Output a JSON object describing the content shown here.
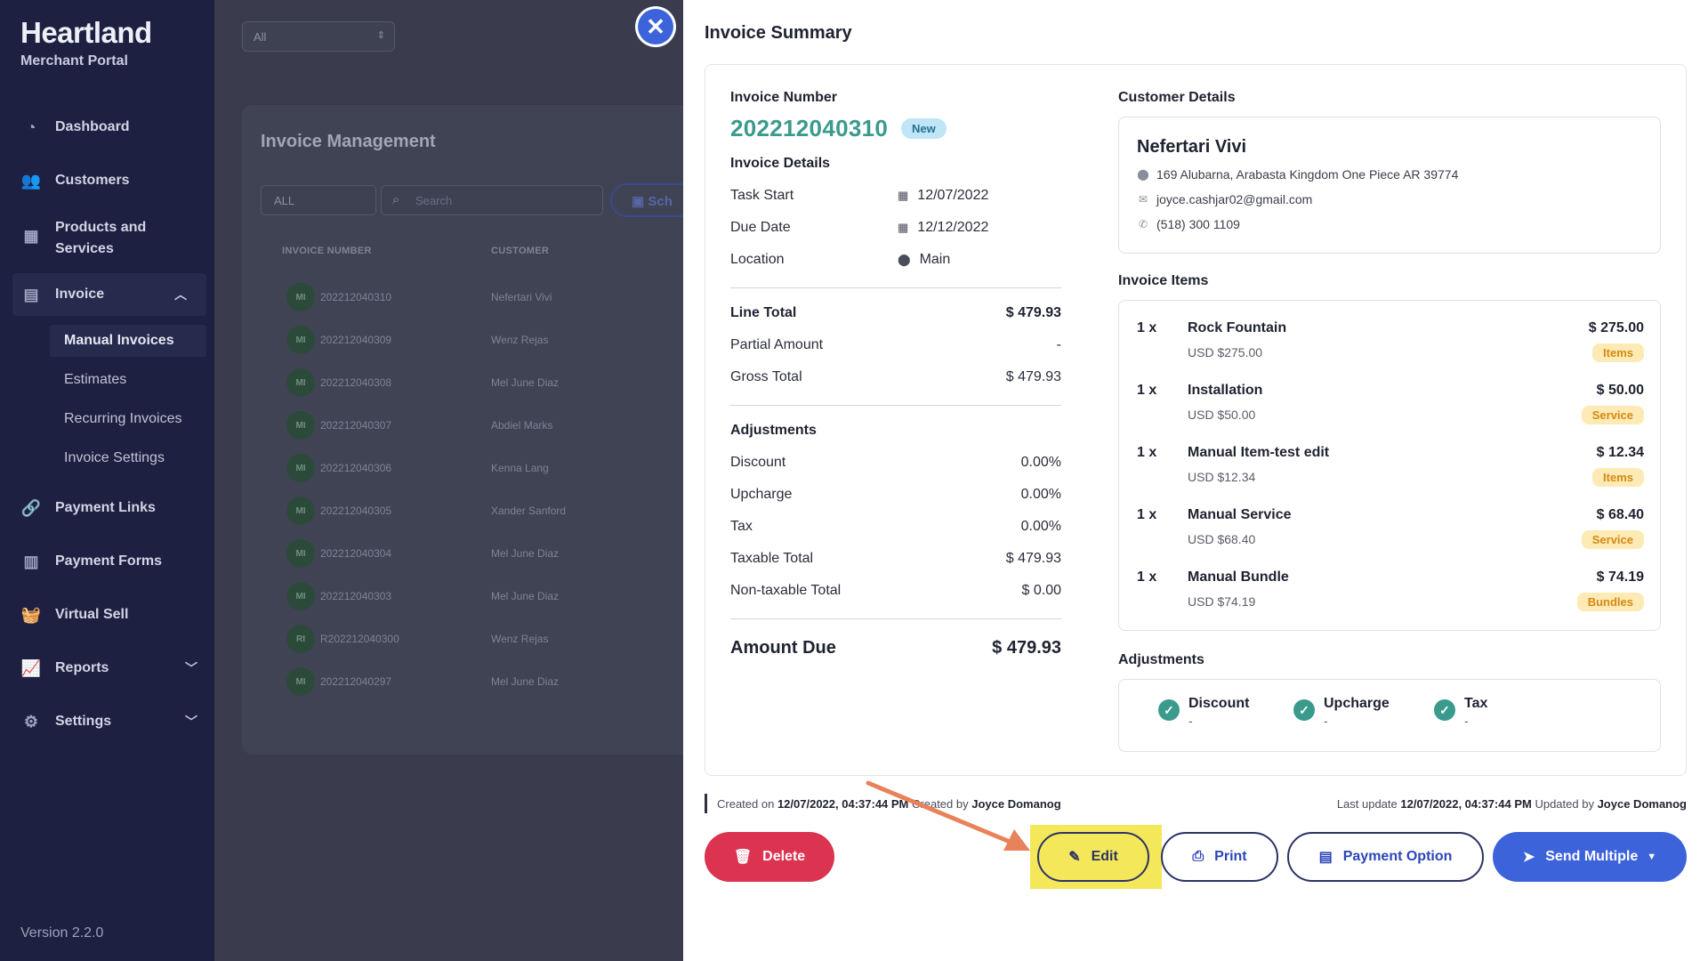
{
  "sidebar": {
    "brand": "Heartland",
    "subtitle": "Merchant Portal",
    "nav": [
      {
        "label": "Dashboard",
        "icon": "pie-chart-icon"
      },
      {
        "label": "Customers",
        "icon": "users-icon"
      },
      {
        "label": "Products and",
        "label2": "Services",
        "icon": "boxes-icon"
      },
      {
        "label": "Invoice",
        "icon": "document-icon"
      },
      {
        "label": "Payment Links",
        "icon": "link-icon"
      },
      {
        "label": "Payment Forms",
        "icon": "form-icon"
      },
      {
        "label": "Virtual Sell",
        "icon": "basket-icon"
      },
      {
        "label": "Reports",
        "icon": "line-chart-icon"
      },
      {
        "label": "Settings",
        "icon": "gears-icon"
      }
    ],
    "invoice_sub": [
      "Manual Invoices",
      "Estimates",
      "Recurring Invoices",
      "Invoice Settings"
    ],
    "version": "Version 2.2.0"
  },
  "background": {
    "filter_value": "All",
    "title": "Invoice Management",
    "all_value": "ALL",
    "search_placeholder": "Search",
    "schedule_label": "Sch",
    "col_invoice": "INVOICE NUMBER",
    "col_customer": "CUSTOMER",
    "rows": [
      {
        "initials": "MI",
        "number": "202212040310",
        "customer": "Nefertari Vivi"
      },
      {
        "initials": "MI",
        "number": "202212040309",
        "customer": "Wenz Rejas"
      },
      {
        "initials": "MI",
        "number": "202212040308",
        "customer": "Mel June Diaz"
      },
      {
        "initials": "MI",
        "number": "202212040307",
        "customer": "Abdiel Marks"
      },
      {
        "initials": "MI",
        "number": "202212040306",
        "customer": "Kenna Lang"
      },
      {
        "initials": "MI",
        "number": "202212040305",
        "customer": "Xander Sanford"
      },
      {
        "initials": "MI",
        "number": "202212040304",
        "customer": "Mel June Diaz"
      },
      {
        "initials": "MI",
        "number": "202212040303",
        "customer": "Mel June Diaz"
      },
      {
        "initials": "RI",
        "number": "R202212040300",
        "customer": "Wenz Rejas"
      },
      {
        "initials": "MI",
        "number": "202212040297",
        "customer": "Mel June Diaz"
      }
    ]
  },
  "drawer": {
    "title": "Invoice Summary",
    "invoice_number_label": "Invoice Number",
    "invoice_number": "202212040310",
    "status": "New",
    "details_label": "Invoice Details",
    "task_start_label": "Task Start",
    "task_start": "12/07/2022",
    "due_date_label": "Due Date",
    "due_date": "12/12/2022",
    "location_label": "Location",
    "location": "Main",
    "line_total_label": "Line Total",
    "line_total": "$ 479.93",
    "partial_label": "Partial Amount",
    "partial": "-",
    "gross_label": "Gross Total",
    "gross": "$ 479.93",
    "adjustments_label": "Adjustments",
    "discount_label": "Discount",
    "discount": "0.00%",
    "upcharge_label": "Upcharge",
    "upcharge": "0.00%",
    "tax_label": "Tax",
    "tax": "0.00%",
    "taxable_label": "Taxable Total",
    "taxable": "$ 479.93",
    "nontaxable_label": "Non-taxable Total",
    "nontaxable": "$ 0.00",
    "amount_due_label": "Amount Due",
    "amount_due": "$ 479.93",
    "customer": {
      "section_label": "Customer Details",
      "name": "Nefertari Vivi",
      "address": "169 Alubarna, Arabasta Kingdom One Piece AR 39774",
      "email": "joyce.cashjar02@gmail.com",
      "phone": "(518) 300 1109"
    },
    "items_label": "Invoice Items",
    "items": [
      {
        "qty": "1 x",
        "name": "Rock Fountain",
        "usd": "USD $275.00",
        "amount": "$ 275.00",
        "tag": "Items"
      },
      {
        "qty": "1 x",
        "name": "Installation",
        "usd": "USD $50.00",
        "amount": "$ 50.00",
        "tag": "Service"
      },
      {
        "qty": "1 x",
        "name": "Manual Item-test edit",
        "usd": "USD $12.34",
        "amount": "$ 12.34",
        "tag": "Items"
      },
      {
        "qty": "1 x",
        "name": "Manual Service",
        "usd": "USD $68.40",
        "amount": "$ 68.40",
        "tag": "Service"
      },
      {
        "qty": "1 x",
        "name": "Manual Bundle",
        "usd": "USD $74.19",
        "amount": "$ 74.19",
        "tag": "Bundles"
      }
    ],
    "adj_section_label": "Adjustments",
    "adjustments": [
      {
        "title": "Discount",
        "value": "-"
      },
      {
        "title": "Upcharge",
        "value": "-"
      },
      {
        "title": "Tax",
        "value": "-"
      }
    ],
    "meta": {
      "created_prefix": "Created on",
      "created_on": "12/07/2022, 04:37:44 PM",
      "created_by_prefix": "Created by",
      "created_by": "Joyce Domanog",
      "updated_prefix": "Last update",
      "updated_on": "12/07/2022, 04:37:44 PM",
      "updated_by_prefix": "Updated by",
      "updated_by": "Joyce Domanog"
    },
    "buttons": {
      "delete": "Delete",
      "edit": "Edit",
      "print": "Print",
      "payment": "Payment Option",
      "send": "Send Multiple"
    }
  },
  "colors": {
    "accent": "#3d63db",
    "teal": "#3a9a8c",
    "danger": "#db3350",
    "highlight": "#f4e85a",
    "annotation_arrow": "#e8825a"
  }
}
